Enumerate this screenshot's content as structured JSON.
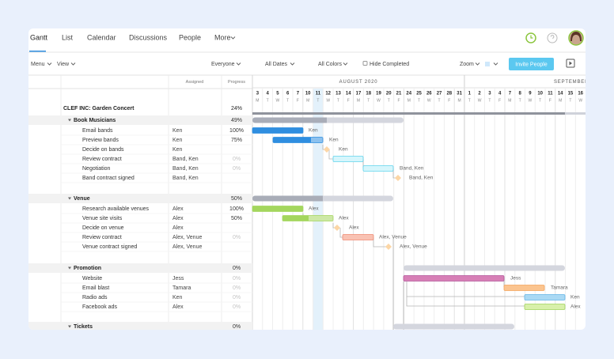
{
  "tabs": [
    "Gantt",
    "List",
    "Calendar",
    "Discussions",
    "People",
    "More"
  ],
  "toolbar": {
    "menu": "Menu",
    "view": "View",
    "everyone": "Everyone",
    "dates": "All Dates",
    "colors": "All Colors",
    "hide": "Hide Completed",
    "zoom": "Zoom",
    "invite": "Invite People"
  },
  "table": {
    "columns": [
      "Assigned",
      "Progress"
    ],
    "project": {
      "name": "CLEF INC: Garden Concert",
      "progress": "24%"
    },
    "groups": [
      {
        "name": "Book Musicians",
        "progress": "49%",
        "tasks": [
          {
            "name": "Email bands",
            "assigned": "Ken",
            "progress": "100%"
          },
          {
            "name": "Preview bands",
            "assigned": "Ken",
            "progress": "75%"
          },
          {
            "name": "Decide on bands",
            "assigned": "Ken"
          },
          {
            "name": "Review contract",
            "assigned": "Band, Ken",
            "progress": "0%"
          },
          {
            "name": "Negotiation",
            "assigned": "Band, Ken",
            "progress": "0%"
          },
          {
            "name": "Band contract signed",
            "assigned": "Band, Ken"
          }
        ]
      },
      {
        "name": "Venue",
        "progress": "50%",
        "tasks": [
          {
            "name": "Research available venues",
            "assigned": "Alex",
            "progress": "100%"
          },
          {
            "name": "Venue site visits",
            "assigned": "Alex",
            "progress": "50%"
          },
          {
            "name": "Decide on venue",
            "assigned": "Alex"
          },
          {
            "name": "Review contract",
            "assigned": "Alex, Venue",
            "progress": "0%"
          },
          {
            "name": "Venue contract signed",
            "assigned": "Alex, Venue"
          }
        ]
      },
      {
        "name": "Promotion",
        "progress": "0%",
        "tasks": [
          {
            "name": "Website",
            "assigned": "Jess",
            "progress": "0%"
          },
          {
            "name": "Email blast",
            "assigned": "Tamara",
            "progress": "0%"
          },
          {
            "name": "Radio ads",
            "assigned": "Ken",
            "progress": "0%"
          },
          {
            "name": "Facebook ads",
            "assigned": "Alex",
            "progress": "0%"
          }
        ]
      },
      {
        "name": "Tickets",
        "progress": "0%",
        "tasks": []
      }
    ]
  },
  "timeline": {
    "months": [
      "AUGUST 2020",
      "SEPTEMBER"
    ],
    "days": [
      3,
      4,
      5,
      6,
      7,
      10,
      11,
      12,
      13,
      14,
      17,
      18,
      19,
      20,
      21,
      24,
      25,
      26,
      27,
      28,
      31,
      1,
      2,
      3,
      4,
      7,
      8,
      9,
      10,
      11,
      14,
      15,
      16
    ],
    "weekdays": [
      "M",
      "T",
      "W",
      "T",
      "F",
      "M",
      "T",
      "W",
      "T",
      "F",
      "M",
      "T",
      "W",
      "T",
      "F",
      "M",
      "T",
      "W",
      "T",
      "F",
      "M",
      "T",
      "W",
      "T",
      "F",
      "M",
      "T",
      "W",
      "T",
      "F",
      "M",
      "T",
      "W"
    ]
  }
}
